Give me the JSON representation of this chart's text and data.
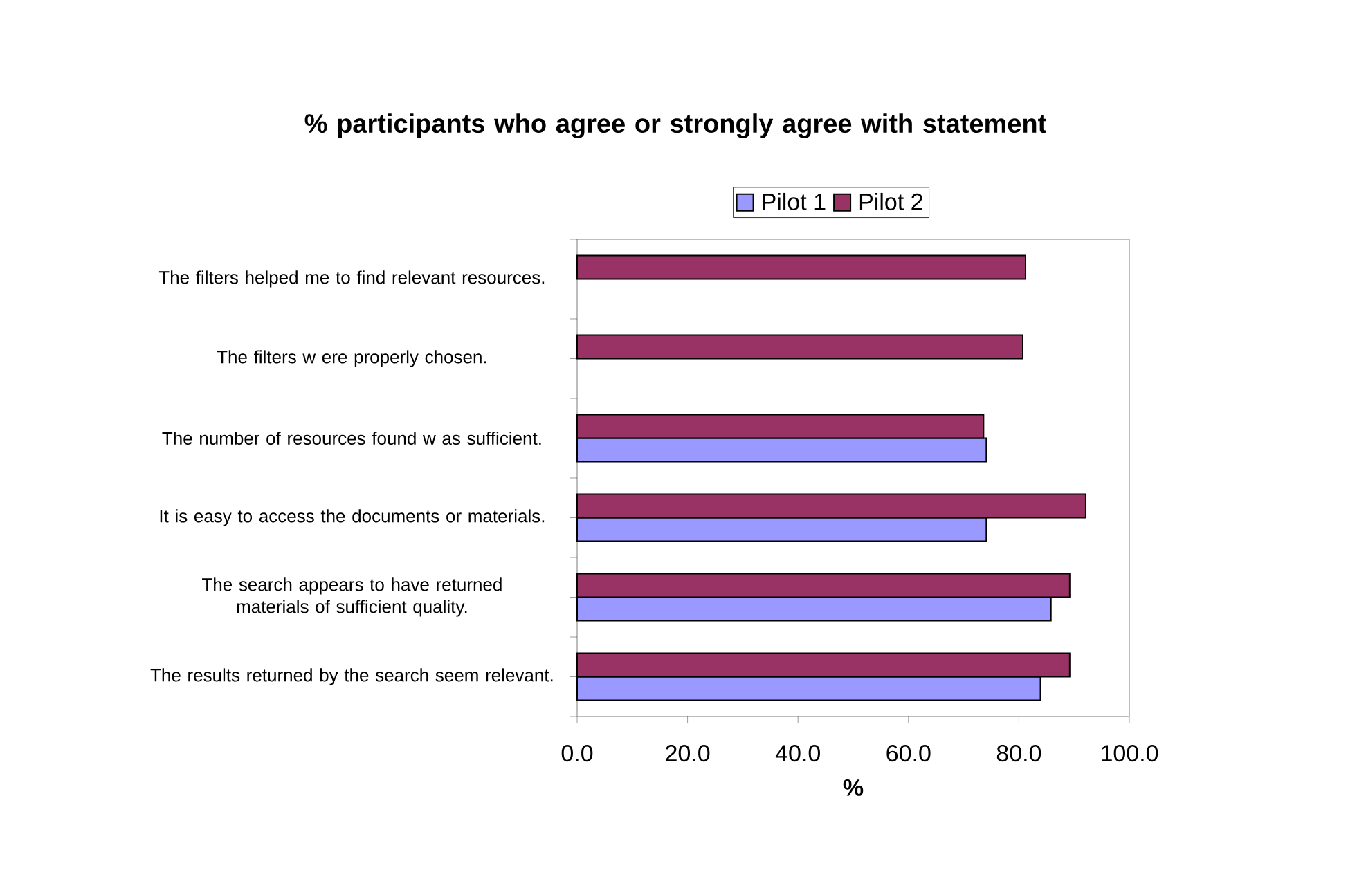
{
  "chart_data": {
    "type": "bar",
    "orientation": "horizontal",
    "title": "% participants who agree or strongly agree with statement",
    "xlabel": "%",
    "categories": [
      "The filters helped me to find relevant resources.",
      "The filters w ere properly chosen.",
      "The number of resources found w as sufficient.",
      "It is easy to access the documents or materials.",
      "The search appears to have returned materials of sufficient quality.",
      "The results returned by the search seem relevant."
    ],
    "series": [
      {
        "name": "Pilot 1",
        "color": "#9999ff",
        "values": [
          null,
          null,
          74.1,
          74.1,
          85.8,
          83.9
        ]
      },
      {
        "name": "Pilot 2",
        "color": "#993366",
        "values": [
          81.2,
          80.7,
          73.6,
          92.1,
          89.2,
          89.2
        ]
      }
    ],
    "xlim": [
      0,
      100
    ],
    "xticks": [
      {
        "value": 0,
        "label": "0.0"
      },
      {
        "value": 20,
        "label": "20.0"
      },
      {
        "value": 40,
        "label": "40.0"
      },
      {
        "value": 60,
        "label": "60.0"
      },
      {
        "value": 80,
        "label": "80.0"
      },
      {
        "value": 100,
        "label": "100.0"
      }
    ],
    "legend": "top",
    "grid": false
  }
}
